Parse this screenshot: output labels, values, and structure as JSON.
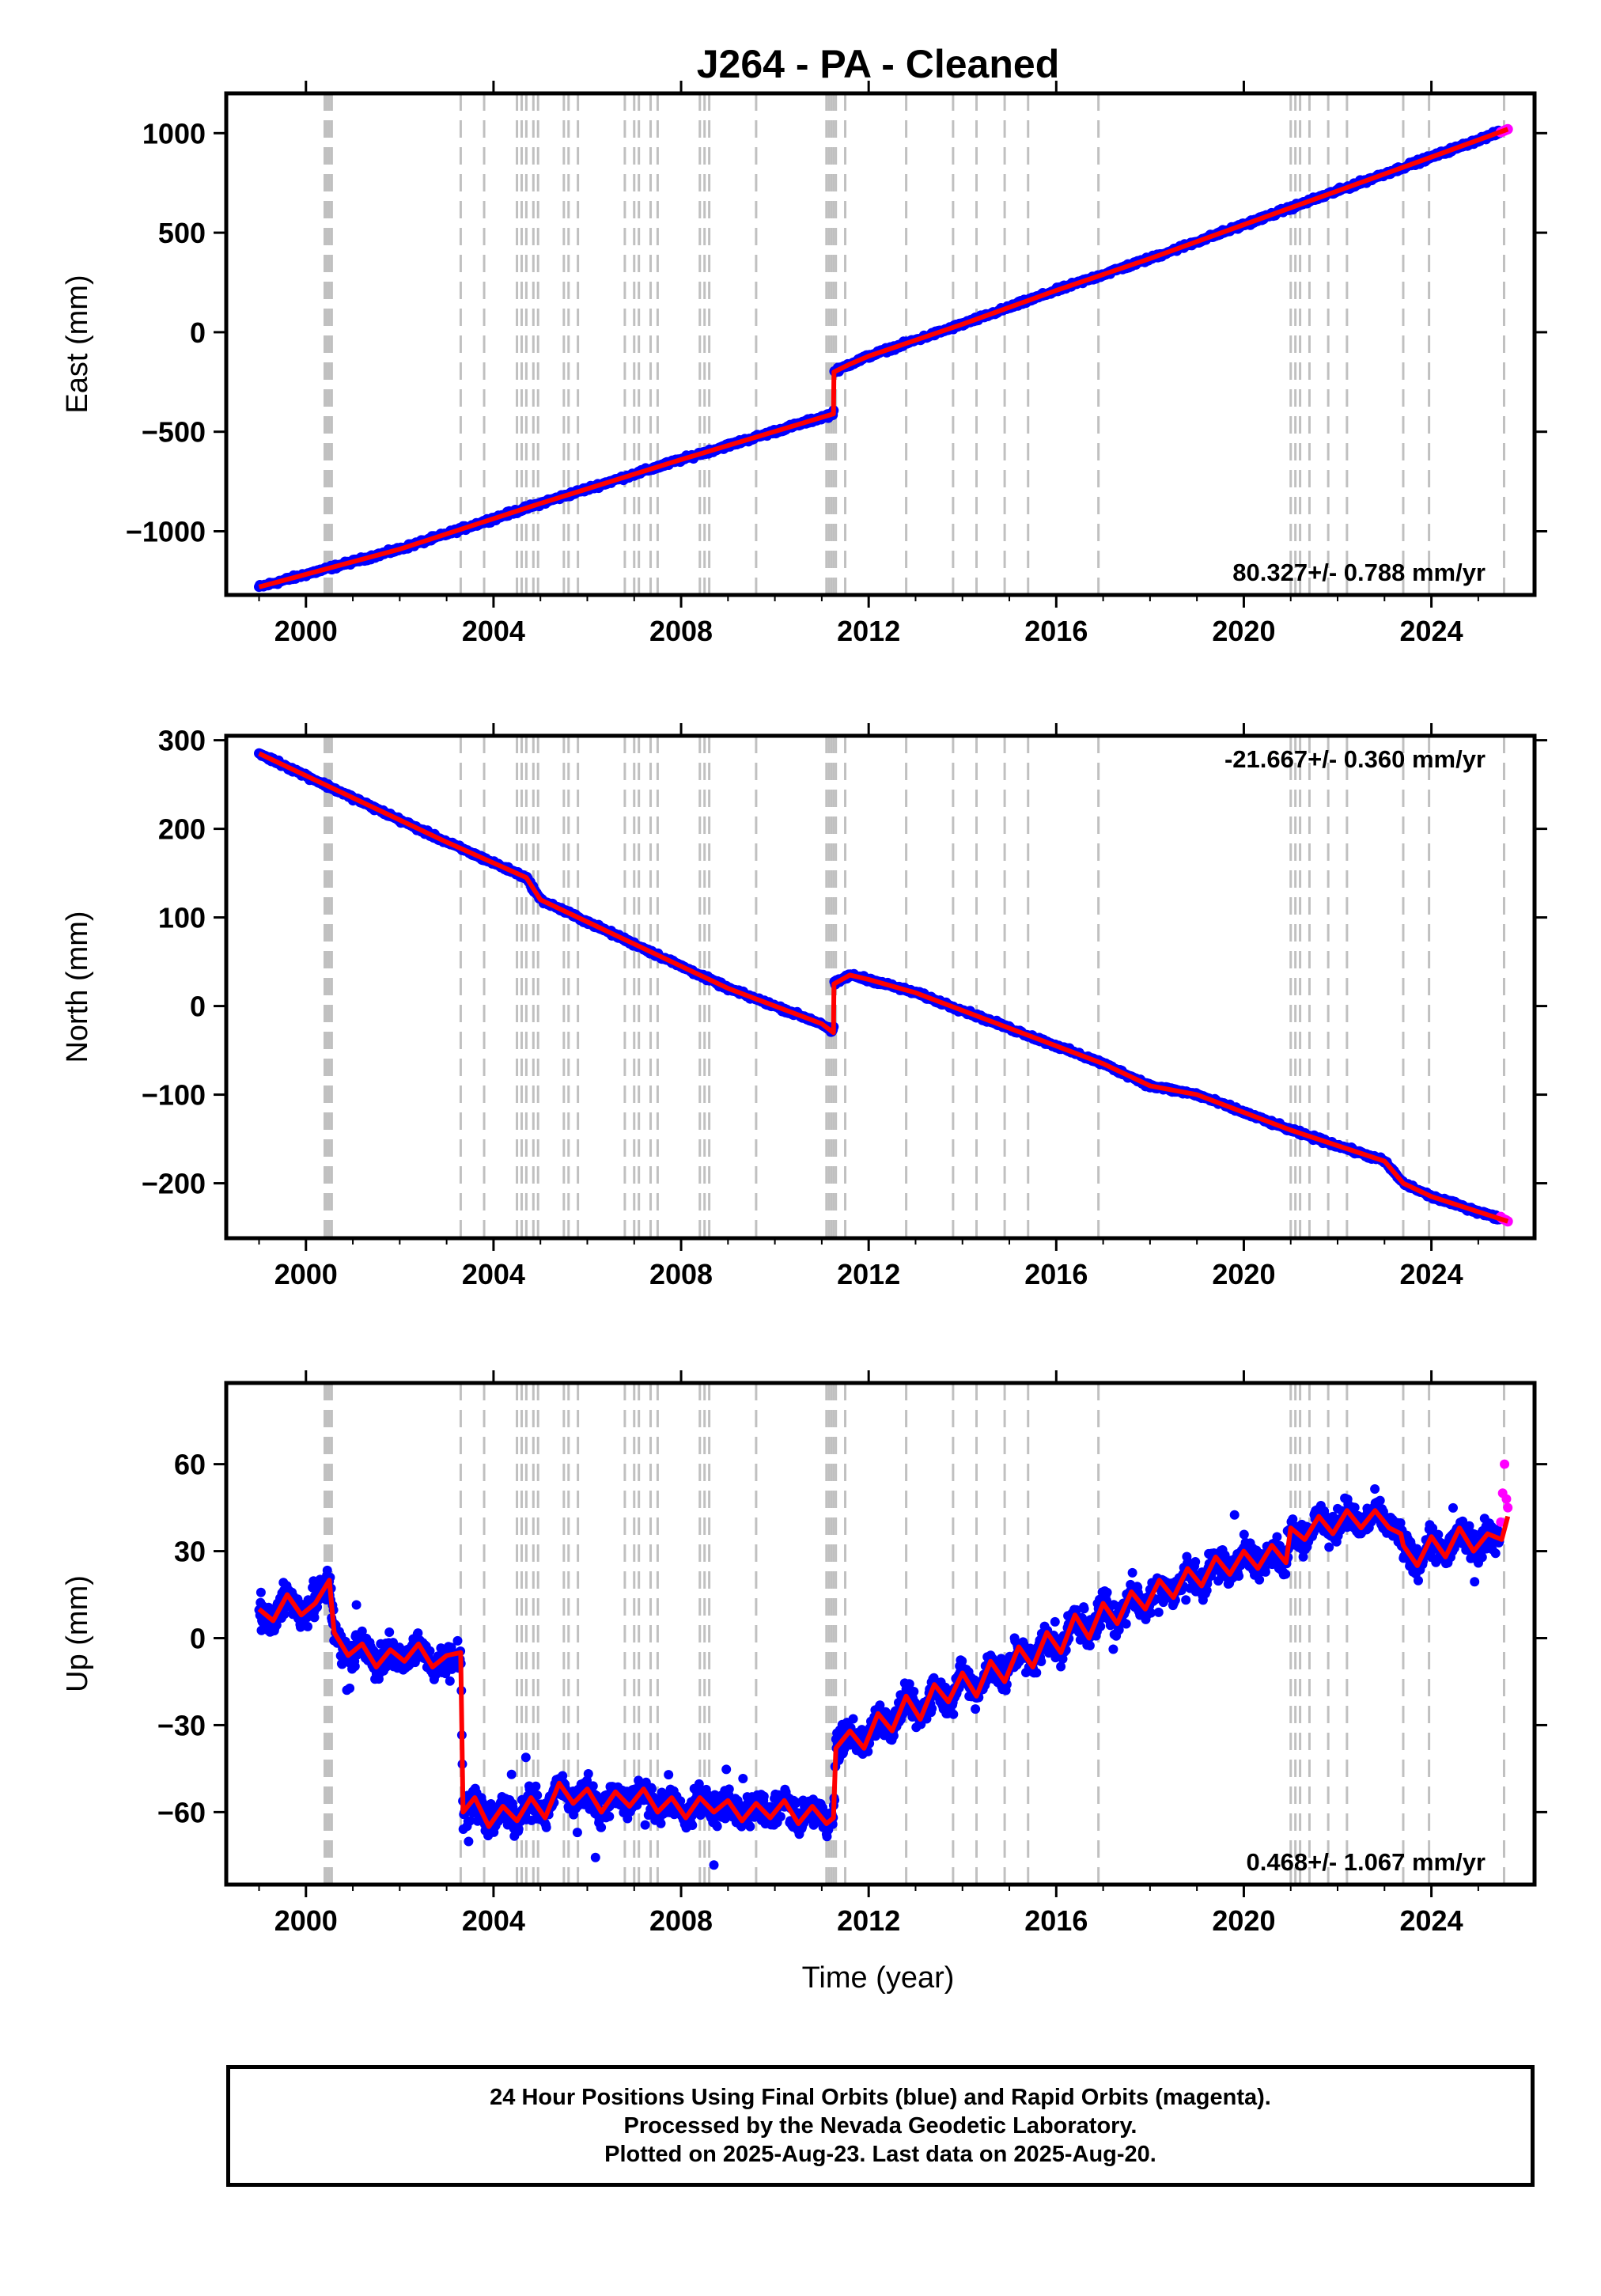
{
  "title": "J264  - PA - Cleaned",
  "xlabel": "Time (year)",
  "footer": {
    "line1": "24 Hour Positions Using Final Orbits (blue) and Rapid Orbits (magenta).",
    "line2": "Processed by the Nevada Geodetic Laboratory.",
    "line3": "Plotted on 2025-Aug-23. Last data on 2025-Aug-20."
  },
  "colors": {
    "final_orbits": "#0000ff",
    "rapid_orbits": "#ff00ff",
    "model": "#ff0000",
    "event_lines": "#c0c0c0"
  },
  "chart_data": [
    {
      "type": "scatter",
      "ylabel": "East (mm)",
      "rate_label": "80.327+/- 0.788 mm/yr",
      "xlim": [
        1998.3,
        2026.2
      ],
      "ylim": [
        -1320,
        1200
      ],
      "x_ticks": [
        2000,
        2004,
        2008,
        2012,
        2016,
        2020,
        2024
      ],
      "y_ticks": [
        1000,
        500,
        0,
        -500,
        -1000
      ],
      "y_tick_labels": [
        "1000",
        "500",
        "0",
        "−500",
        "−1000"
      ],
      "series": [
        {
          "name": "Final Orbits",
          "role": "final",
          "x": [
            1999.0,
            2000.0,
            2001.0,
            2002.0,
            2003.0,
            2004.0,
            2005.0,
            2006.0,
            2007.0,
            2008.0,
            2009.0,
            2010.0,
            2011.0,
            2011.25,
            2011.3,
            2011.6,
            2012.0,
            2013.0,
            2014.0,
            2015.0,
            2016.0,
            2017.0,
            2018.0,
            2019.0,
            2020.0,
            2021.0,
            2022.0,
            2023.0,
            2024.0,
            2025.0,
            2025.45
          ],
          "y": [
            -1280,
            -1220,
            -1160,
            -1090,
            -1020,
            -940,
            -860,
            -780,
            -700,
            -640,
            -570,
            -510,
            -440,
            -410,
            -200,
            -160,
            -120,
            -40,
            40,
            120,
            210,
            290,
            370,
            460,
            540,
            620,
            710,
            800,
            880,
            960,
            1000
          ]
        },
        {
          "name": "Rapid Orbits",
          "role": "rapid",
          "x": [
            2025.48,
            2025.52,
            2025.56,
            2025.6,
            2025.63
          ],
          "y": [
            1005,
            1009,
            1013,
            1017,
            1020
          ]
        },
        {
          "name": "Model",
          "role": "model",
          "x": [
            1999.0,
            2002.0,
            2005.0,
            2008.0,
            2011.25,
            2011.26,
            2011.6,
            2012.0,
            2014.0,
            2016.0,
            2018.0,
            2020.0,
            2022.0,
            2024.0,
            2025.63
          ],
          "y": [
            -1280,
            -1090,
            -860,
            -640,
            -410,
            -200,
            -160,
            -120,
            40,
            210,
            370,
            540,
            710,
            880,
            1020
          ]
        }
      ],
      "event_lines_x": [
        2000.4,
        2000.45,
        2000.5,
        2000.55,
        2003.3,
        2003.8,
        2004.5,
        2004.6,
        2004.7,
        2004.85,
        2004.95,
        2005.5,
        2005.6,
        2005.8,
        2006.8,
        2007.0,
        2007.1,
        2007.35,
        2007.5,
        2008.4,
        2008.5,
        2008.6,
        2009.6,
        2011.1,
        2011.15,
        2011.2,
        2011.25,
        2011.3,
        2011.5,
        2012.8,
        2013.8,
        2014.3,
        2014.9,
        2015.4,
        2016.9,
        2021.0,
        2021.1,
        2021.2,
        2021.4,
        2021.8,
        2022.2,
        2023.4,
        2023.95,
        2025.55
      ]
    },
    {
      "type": "scatter",
      "ylabel": "North (mm)",
      "rate_label": "-21.667+/- 0.360 mm/yr",
      "xlim": [
        1998.3,
        2026.2
      ],
      "ylim": [
        -262,
        305
      ],
      "x_ticks": [
        2000,
        2004,
        2008,
        2012,
        2016,
        2020,
        2024
      ],
      "y_ticks": [
        300,
        200,
        100,
        0,
        -100,
        -200
      ],
      "y_tick_labels": [
        "300",
        "200",
        "100",
        "0",
        "−100",
        "−200"
      ],
      "series": [
        {
          "name": "Final Orbits",
          "role": "final",
          "x": [
            1999.0,
            2000.0,
            2001.0,
            2002.0,
            2003.0,
            2004.0,
            2004.7,
            2005.0,
            2006.0,
            2007.0,
            2008.0,
            2009.0,
            2010.0,
            2011.0,
            2011.25,
            2011.3,
            2011.6,
            2012.0,
            2013.0,
            2014.0,
            2015.0,
            2016.0,
            2017.0,
            2018.0,
            2019.0,
            2020.0,
            2021.0,
            2022.0,
            2023.0,
            2023.4,
            2024.0,
            2025.0,
            2025.45
          ],
          "y": [
            285,
            260,
            235,
            210,
            185,
            160,
            145,
            120,
            95,
            70,
            45,
            20,
            -5,
            -20,
            -30,
            25,
            35,
            30,
            15,
            -5,
            -25,
            -45,
            -65,
            -85,
            -100,
            -120,
            -140,
            -160,
            -175,
            -200,
            -215,
            -230,
            -238
          ]
        },
        {
          "name": "Rapid Orbits",
          "role": "rapid",
          "x": [
            2025.48,
            2025.52,
            2025.56,
            2025.6,
            2025.63
          ],
          "y": [
            -238,
            -240,
            -241,
            -242,
            -243
          ]
        },
        {
          "name": "Model",
          "role": "model",
          "x": [
            1999.0,
            2001.0,
            2003.0,
            2004.7,
            2005.0,
            2007.0,
            2009.0,
            2011.0,
            2011.25,
            2011.26,
            2011.6,
            2012.0,
            2013.0,
            2015.0,
            2017.0,
            2018.0,
            2019.0,
            2021.0,
            2023.0,
            2023.4,
            2024.0,
            2025.63
          ],
          "y": [
            285,
            235,
            185,
            145,
            120,
            70,
            20,
            -20,
            -30,
            25,
            35,
            30,
            15,
            -25,
            -65,
            -90,
            -100,
            -140,
            -175,
            -200,
            -215,
            -243
          ]
        }
      ],
      "event_lines_x": [
        2000.4,
        2000.45,
        2000.5,
        2000.55,
        2003.3,
        2003.8,
        2004.5,
        2004.6,
        2004.7,
        2004.85,
        2004.95,
        2005.5,
        2005.6,
        2005.8,
        2006.8,
        2007.0,
        2007.1,
        2007.35,
        2007.5,
        2008.4,
        2008.5,
        2008.6,
        2009.6,
        2011.1,
        2011.15,
        2011.2,
        2011.25,
        2011.3,
        2011.5,
        2012.8,
        2013.8,
        2014.3,
        2014.9,
        2015.4,
        2016.9,
        2021.0,
        2021.1,
        2021.2,
        2021.4,
        2021.8,
        2022.2,
        2023.4,
        2023.95,
        2025.55
      ]
    },
    {
      "type": "scatter",
      "ylabel": "Up (mm)",
      "rate_label": "0.468+/- 1.067 mm/yr",
      "xlim": [
        1998.3,
        2026.2
      ],
      "ylim": [
        -85,
        88
      ],
      "x_ticks": [
        2000,
        2004,
        2008,
        2012,
        2016,
        2020,
        2024
      ],
      "x_tick_labels_shown": true,
      "y_ticks": [
        60,
        30,
        0,
        -30,
        -60
      ],
      "y_tick_labels": [
        "60",
        "30",
        "0",
        "−30",
        "−60"
      ],
      "series": [
        {
          "name": "Final Orbits",
          "role": "final",
          "x": [
            1999.0,
            1999.5,
            2000.0,
            2000.5,
            2001.0,
            2001.5,
            2002.0,
            2002.5,
            2003.0,
            2003.3,
            2003.4,
            2004.0,
            2004.5,
            2005.0,
            2005.5,
            2006.0,
            2007.0,
            2008.0,
            2009.0,
            2010.0,
            2011.0,
            2011.25,
            2011.3,
            2012.0,
            2013.0,
            2014.0,
            2015.0,
            2016.0,
            2017.0,
            2018.0,
            2019.0,
            2020.0,
            2021.0,
            2022.0,
            2022.9,
            2023.0,
            2023.5,
            2024.0,
            2025.0,
            2025.45
          ],
          "y": [
            10,
            14,
            8,
            18,
            -2,
            4,
            -5,
            0,
            -6,
            -8,
            -60,
            -62,
            -63,
            -60,
            -55,
            -58,
            -57,
            -57,
            -58,
            -60,
            -62,
            -62,
            -35,
            -32,
            -22,
            -15,
            -8,
            0,
            8,
            15,
            20,
            25,
            33,
            38,
            40,
            28,
            30,
            32,
            35,
            38
          ]
        },
        {
          "name": "Rapid Orbits",
          "role": "rapid",
          "x": [
            2025.48,
            2025.52,
            2025.56,
            2025.6,
            2025.63
          ],
          "y": [
            40,
            50,
            60,
            48,
            45
          ]
        },
        {
          "name": "Model",
          "role": "model",
          "x": [
            1999.0,
            1999.3,
            1999.6,
            1999.9,
            2000.2,
            2000.5,
            2000.6,
            2000.9,
            2001.2,
            2001.5,
            2001.8,
            2002.1,
            2002.4,
            2002.7,
            2003.0,
            2003.3,
            2003.35,
            2003.6,
            2003.9,
            2004.2,
            2004.5,
            2004.8,
            2005.1,
            2005.4,
            2005.7,
            2006.0,
            2006.3,
            2006.6,
            2006.9,
            2007.2,
            2007.5,
            2007.8,
            2008.1,
            2008.4,
            2008.7,
            2009.0,
            2009.3,
            2009.6,
            2009.9,
            2010.2,
            2010.5,
            2010.8,
            2011.1,
            2011.25,
            2011.3,
            2011.6,
            2011.9,
            2012.2,
            2012.5,
            2012.8,
            2013.1,
            2013.4,
            2013.7,
            2014.0,
            2014.3,
            2014.6,
            2014.9,
            2015.2,
            2015.5,
            2015.8,
            2016.1,
            2016.4,
            2016.7,
            2017.0,
            2017.3,
            2017.6,
            2017.9,
            2018.2,
            2018.5,
            2018.8,
            2019.1,
            2019.4,
            2019.7,
            2020.0,
            2020.3,
            2020.6,
            2020.9,
            2021.0,
            2021.3,
            2021.6,
            2021.9,
            2022.2,
            2022.5,
            2022.8,
            2023.1,
            2023.35,
            2023.4,
            2023.7,
            2024.0,
            2024.3,
            2024.6,
            2024.9,
            2025.2,
            2025.5,
            2025.63
          ],
          "y": [
            10,
            6,
            15,
            8,
            12,
            20,
            2,
            -6,
            -2,
            -10,
            -4,
            -8,
            -2,
            -10,
            -6,
            -5,
            -60,
            -55,
            -65,
            -58,
            -63,
            -55,
            -62,
            -50,
            -57,
            -52,
            -60,
            -53,
            -58,
            -52,
            -60,
            -55,
            -62,
            -55,
            -60,
            -56,
            -63,
            -57,
            -62,
            -56,
            -64,
            -58,
            -64,
            -62,
            -38,
            -32,
            -38,
            -26,
            -32,
            -20,
            -28,
            -16,
            -22,
            -12,
            -20,
            -8,
            -15,
            -3,
            -10,
            2,
            -5,
            8,
            0,
            12,
            5,
            16,
            10,
            20,
            14,
            24,
            18,
            28,
            22,
            30,
            24,
            32,
            26,
            38,
            34,
            42,
            36,
            44,
            38,
            44,
            38,
            36,
            32,
            25,
            35,
            28,
            38,
            30,
            36,
            34,
            42
          ]
        }
      ],
      "event_lines_x": [
        2000.4,
        2000.45,
        2000.5,
        2000.55,
        2003.3,
        2003.8,
        2004.5,
        2004.6,
        2004.7,
        2004.85,
        2004.95,
        2005.5,
        2005.6,
        2005.8,
        2006.8,
        2007.0,
        2007.1,
        2007.35,
        2007.5,
        2008.4,
        2008.5,
        2008.6,
        2009.6,
        2011.1,
        2011.15,
        2011.2,
        2011.25,
        2011.3,
        2011.5,
        2012.8,
        2013.8,
        2014.3,
        2014.9,
        2015.4,
        2016.9,
        2021.0,
        2021.1,
        2021.2,
        2021.4,
        2021.8,
        2022.2,
        2023.4,
        2023.95,
        2025.55
      ]
    }
  ]
}
